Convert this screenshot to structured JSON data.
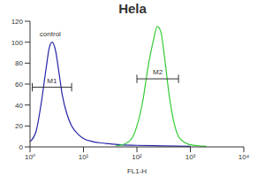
{
  "chart_data": {
    "type": "line",
    "title": "Hela",
    "xlabel": "FL1-H",
    "log": "x",
    "xlim": [
      1,
      10000
    ],
    "xticks": [
      {
        "value": 1,
        "label": "10⁰"
      },
      {
        "value": 10,
        "label": "10¹"
      },
      {
        "value": 100,
        "label": "10²"
      },
      {
        "value": 1000,
        "label": "10³"
      },
      {
        "value": 10000,
        "label": "10⁴"
      }
    ],
    "ylim": [
      0,
      120
    ],
    "yticks": [
      0,
      20,
      40,
      60,
      80,
      100,
      120
    ],
    "series": [
      {
        "color": "#2424a8",
        "x": [
          1,
          1.3,
          1.6,
          2,
          2.3,
          2.6,
          3,
          3.5,
          4,
          5,
          6,
          8,
          10,
          15,
          20,
          30,
          50,
          100,
          300,
          1000
        ],
        "values": [
          5,
          15,
          40,
          75,
          95,
          100,
          92,
          70,
          50,
          30,
          20,
          12,
          8,
          5,
          4,
          3,
          2,
          1.5,
          1,
          0.5
        ]
      },
      {
        "color": "#33cc33",
        "x": [
          40,
          60,
          80,
          100,
          130,
          160,
          200,
          240,
          280,
          330,
          400,
          500,
          600,
          800,
          1000,
          1500,
          2000
        ],
        "values": [
          1,
          3,
          8,
          20,
          45,
          75,
          100,
          115,
          110,
          85,
          50,
          22,
          10,
          4,
          2,
          1,
          0.5
        ]
      }
    ],
    "annotations": [
      {
        "text": "control",
        "x": 1.25,
        "y": 108
      },
      {
        "text": "M1",
        "x": [
          1.1,
          6
        ],
        "y": 57
      },
      {
        "text": "M2",
        "x": [
          100,
          600
        ],
        "y": 65
      }
    ]
  }
}
